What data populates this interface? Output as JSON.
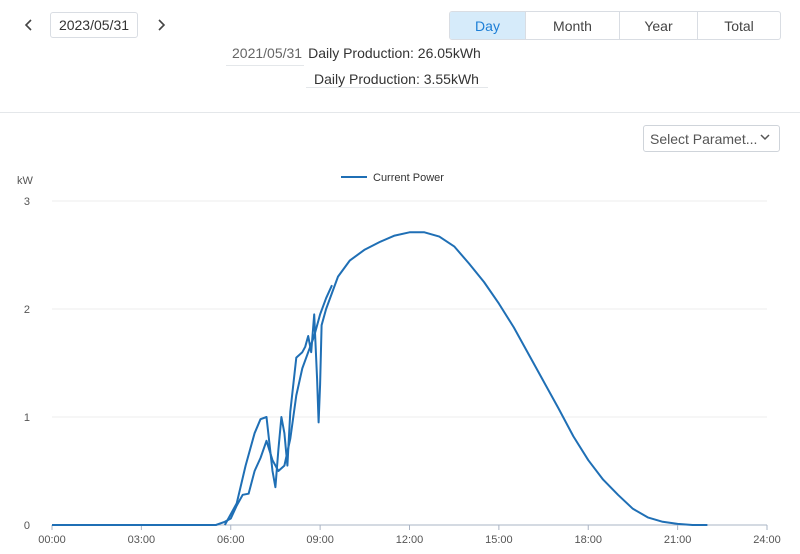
{
  "toolbar": {
    "prev_icon": "chevron-left-icon",
    "next_icon": "chevron-right-icon",
    "date": "2023/05/31",
    "tabs": [
      {
        "label": "Day",
        "active": true
      },
      {
        "label": "Month",
        "active": false
      },
      {
        "label": "Year",
        "active": false
      },
      {
        "label": "Total",
        "active": false
      }
    ]
  },
  "production": {
    "rows": [
      {
        "date": "2021/05/31",
        "text": "Daily Production: 26.05kWh"
      },
      {
        "date": "",
        "text": "Daily Production: 3.55kWh"
      }
    ]
  },
  "select_param": {
    "label": "Select Paramet...",
    "icon": "chevron-down-icon"
  },
  "colors": {
    "line": "#1f6fb5",
    "accent": "#1c7ed6",
    "active_tab_bg": "#d6ebfa"
  },
  "chart_data": {
    "type": "line",
    "unit_label": "kW",
    "ylim": [
      0,
      3
    ],
    "yticks": [
      "0",
      "1",
      "2",
      "3"
    ],
    "xlim": [
      0,
      24
    ],
    "xticks": [
      "00:00",
      "03:00",
      "06:00",
      "09:00",
      "12:00",
      "15:00",
      "18:00",
      "21:00",
      "24:00"
    ],
    "grid": true,
    "legend_position": "top-center",
    "series": [
      {
        "name": "Current Power",
        "x": [
          0,
          5.5,
          5.8,
          6.0,
          6.2,
          6.4,
          6.6,
          6.8,
          7.0,
          7.2,
          7.4,
          7.6,
          7.8,
          8.0,
          8.2,
          8.4,
          8.6,
          8.8,
          9.0,
          9.2,
          9.4
        ],
        "y": [
          0,
          0,
          0.03,
          0.06,
          0.18,
          0.28,
          0.29,
          0.5,
          0.62,
          0.78,
          0.6,
          0.5,
          0.55,
          0.8,
          1.2,
          1.45,
          1.6,
          1.75,
          1.95,
          2.1,
          2.22
        ]
      },
      {
        "name": "",
        "x": [
          5.8,
          6.2,
          6.5,
          6.8,
          7.0,
          7.2,
          7.4,
          7.5,
          7.6,
          7.7,
          7.8,
          7.9,
          8.0,
          8.2,
          8.4,
          8.5,
          8.6,
          8.7,
          8.8,
          8.9,
          8.95,
          9.0,
          9.05,
          9.2,
          9.6,
          10.0,
          10.5,
          11.0,
          11.5,
          12.0,
          12.5,
          13.0,
          13.5,
          14.0,
          14.5,
          15.0,
          15.5,
          16.0,
          16.5,
          17.0,
          17.5,
          18.0,
          18.5,
          19.0,
          19.5,
          20.0,
          20.5,
          21.0,
          21.5,
          21.8,
          22.0
        ],
        "y": [
          0,
          0.2,
          0.55,
          0.85,
          0.98,
          1.0,
          0.5,
          0.35,
          0.7,
          1.0,
          0.85,
          0.55,
          1.05,
          1.55,
          1.6,
          1.65,
          1.75,
          1.6,
          1.95,
          1.35,
          0.95,
          1.3,
          1.85,
          2.0,
          2.3,
          2.45,
          2.55,
          2.62,
          2.68,
          2.71,
          2.71,
          2.67,
          2.58,
          2.42,
          2.25,
          2.05,
          1.83,
          1.58,
          1.33,
          1.08,
          0.82,
          0.6,
          0.42,
          0.28,
          0.15,
          0.07,
          0.03,
          0.01,
          0.0,
          0.0,
          0.0
        ]
      }
    ]
  }
}
